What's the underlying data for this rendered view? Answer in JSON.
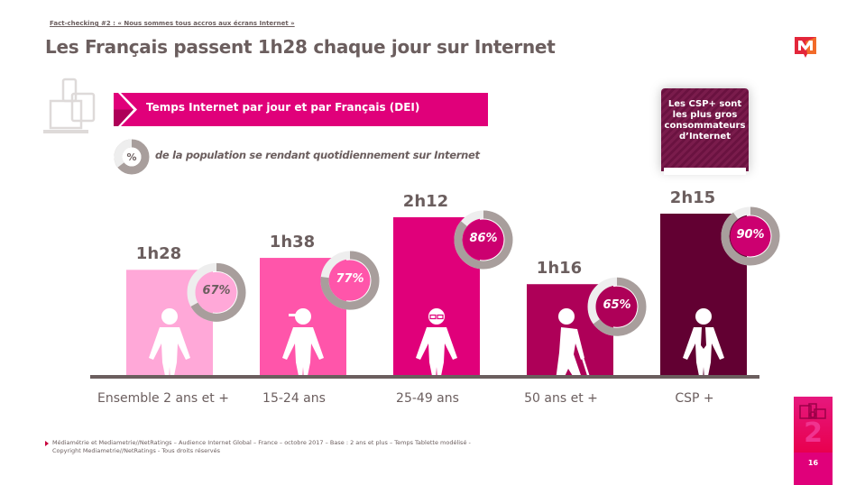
{
  "header": {
    "kicker": "Fact-checking #2 : « Nous sommes tous accros aux écrans Internet »",
    "title": "Les Français passent 1h28 chaque jour sur Internet",
    "logo_icon": "mediametrie-m-logo"
  },
  "legend": {
    "banner_label": "Temps Internet par jour et par Français (DEI)",
    "donut_symbol": "%",
    "donut_label": "de la population se rendant quotidiennement sur Internet"
  },
  "callout": {
    "lines": [
      "Les CSP+ sont",
      "les plus gros",
      "consommateurs",
      "d’Internet"
    ]
  },
  "colors": {
    "ensemble": "#ffa8d8",
    "15_24": "#ff55aa",
    "25_49": "#e0007a",
    "50_plus": "#ae0058",
    "csp": "#620032",
    "donut_ring": "#a89e9c",
    "donut_rest": "#eeeeee",
    "axis": "#6b5e5e"
  },
  "chart_data": {
    "type": "bar",
    "title": "Temps Internet par jour et par Français (DEI)",
    "categories": [
      "Ensemble 2 ans et +",
      "15-24 ans",
      "25-49 ans",
      "50 ans et +",
      "CSP +"
    ],
    "series": [
      {
        "name": "Temps Internet par jour (minutes)",
        "values": [
          88,
          98,
          132,
          76,
          135
        ],
        "labels": [
          "1h28",
          "1h38",
          "2h12",
          "1h16",
          "2h15"
        ]
      },
      {
        "name": "% de la population se rendant quotidiennement sur Internet",
        "values": [
          67,
          77,
          86,
          65,
          90
        ],
        "labels": [
          "67%",
          "77%",
          "86%",
          "65%",
          "90%"
        ]
      }
    ],
    "figures": [
      "adult",
      "youth-cap",
      "adult-glasses",
      "senior-cane",
      "businessman-tie"
    ],
    "xlabel": "",
    "ylabel": "",
    "grid": false
  },
  "source": {
    "line1": "Médiamétrie et Mediametrie//NetRatings – Audience Internet Global – France – octobre 2017 – Base : 2 ans et plus – Temps Tablette modélisé -",
    "line2": "Copyright Mediametrie//NetRatings - Tous droits réservés"
  },
  "page": {
    "section_number": "2",
    "page_number": "16"
  }
}
